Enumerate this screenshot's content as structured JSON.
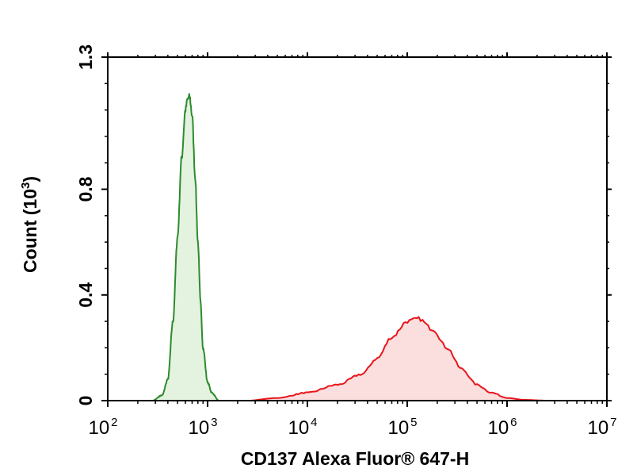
{
  "chart_data": {
    "type": "area",
    "xlabel": "CD137 Alexa Fluor® 647-H",
    "ylabel_prefix": "Count (10",
    "ylabel_exp": "3",
    "ylabel_suffix": ")",
    "x_scale": "log",
    "xlim": [
      100,
      10000000
    ],
    "ylim": [
      0,
      1.3
    ],
    "x_ticks": [
      {
        "base": "10",
        "exp": "2",
        "value": 100
      },
      {
        "base": "10",
        "exp": "3",
        "value": 1000
      },
      {
        "base": "10",
        "exp": "4",
        "value": 10000
      },
      {
        "base": "10",
        "exp": "5",
        "value": 100000
      },
      {
        "base": "10",
        "exp": "6",
        "value": 1000000
      },
      {
        "base": "10",
        "exp": "7",
        "value": 10000000
      }
    ],
    "y_ticks": [
      {
        "label": "0",
        "value": 0
      },
      {
        "label": "0.4",
        "value": 0.4
      },
      {
        "label": "0.8",
        "value": 0.8
      },
      {
        "label": "1.3",
        "value": 1.3
      }
    ],
    "grid": false,
    "series": [
      {
        "color": "#2e8b2e",
        "fill": "#e4f2e0",
        "x": [
          280,
          350,
          400,
          450,
          500,
          550,
          600,
          630,
          660,
          700,
          750,
          800,
          850,
          900,
          1000,
          1100,
          1300
        ],
        "y": [
          0,
          0.02,
          0.08,
          0.3,
          0.62,
          0.92,
          1.1,
          1.14,
          1.15,
          1.08,
          0.85,
          0.6,
          0.37,
          0.2,
          0.07,
          0.03,
          0
        ]
      },
      {
        "color": "#e8151b",
        "fill": "#fbdede",
        "x": [
          2500,
          5000,
          10000,
          20000,
          35000,
          50000,
          70000,
          100000,
          130000,
          180000,
          250000,
          350000,
          500000,
          700000,
          1000000,
          1500000,
          2500000
        ],
        "y": [
          0,
          0.01,
          0.03,
          0.06,
          0.1,
          0.16,
          0.24,
          0.3,
          0.31,
          0.27,
          0.2,
          0.12,
          0.06,
          0.03,
          0.01,
          0.003,
          0
        ]
      }
    ]
  }
}
